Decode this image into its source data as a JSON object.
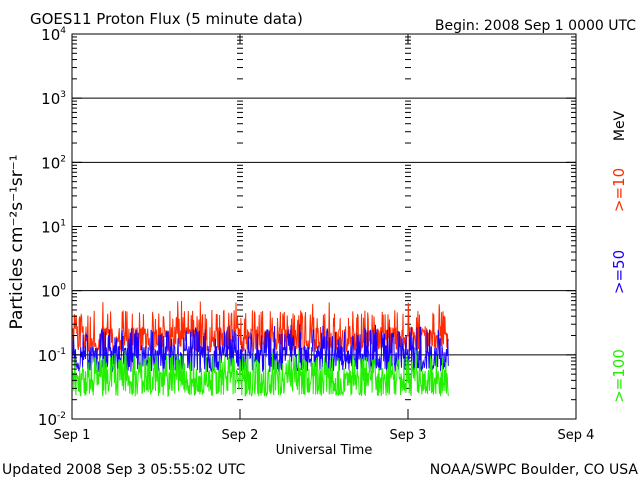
{
  "chart_data": {
    "type": "line",
    "title": "GOES11 Proton Flux (5 minute data)",
    "begin_label": "Begin: 2008 Sep 1 0000 UTC",
    "xlabel": "Universal Time",
    "ylabel": "Particles cm⁻²s⁻¹sr⁻¹",
    "unit_label": "MeV",
    "x_ticks": [
      "Sep 1",
      "Sep 2",
      "Sep 3",
      "Sep 4"
    ],
    "xlim_days": [
      0,
      3
    ],
    "ylim": [
      0.01,
      10000
    ],
    "yscale": "log",
    "y_ticks": [
      {
        "base": "10",
        "exp": "4"
      },
      {
        "base": "10",
        "exp": "3"
      },
      {
        "base": "10",
        "exp": "2"
      },
      {
        "base": "10",
        "exp": "1"
      },
      {
        "base": "10",
        "exp": "0"
      },
      {
        "base": "10",
        "exp": "-1"
      },
      {
        "base": "10",
        "exp": "-2"
      }
    ],
    "y_tick_values": [
      10000,
      1000,
      100,
      10,
      1,
      0.1,
      0.01
    ],
    "gridlines": [
      {
        "value": 1000,
        "style": "solid"
      },
      {
        "value": 100,
        "style": "solid"
      },
      {
        "value": 10,
        "style": "dashed"
      },
      {
        "value": 1,
        "style": "solid"
      },
      {
        "value": 0.1,
        "style": "solid"
      }
    ],
    "data_end_days": 2.24,
    "series": [
      {
        "name": ">=10",
        "color": "#ff2a00",
        "typical": 0.2,
        "low": 0.12,
        "high": 0.5,
        "peak": 0.7
      },
      {
        "name": ">=50",
        "color": "#1a00ff",
        "typical": 0.1,
        "low": 0.06,
        "high": 0.25,
        "peak": 0.3
      },
      {
        "name": ">=100",
        "color": "#22ee00",
        "typical": 0.045,
        "low": 0.025,
        "high": 0.1,
        "peak": 0.12
      }
    ]
  },
  "footer": {
    "updated": "Updated 2008 Sep  3 05:55:02 UTC",
    "source": "NOAA/SWPC Boulder, CO USA"
  }
}
